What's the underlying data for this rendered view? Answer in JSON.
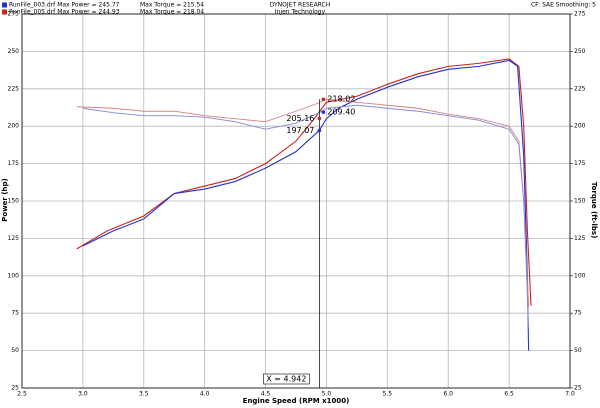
{
  "chart_data": {
    "type": "line",
    "title": "DYNOJET RESEARCH",
    "subtitle": "Injen Technology",
    "corner_note": "CF: SAE Smoothing: 5",
    "x_label": "Engine Speed (RPM x1000)",
    "y_label": "Power (hp)",
    "y2_label": "Torque (ft-lbs)",
    "legend": [
      {
        "text": "RunFile_003.drf Max Power = 245.77",
        "torque_text": "Max Torque = 215.54",
        "color": "#2233cc"
      },
      {
        "text": "RunFile_005.drf Max Power = 244.93",
        "torque_text": "Max Torque = 218.04",
        "color": "#cc2222"
      }
    ],
    "xlim": [
      2.5,
      7.0
    ],
    "xticks": [
      {
        "value": 2.5,
        "label": "2.5"
      },
      {
        "value": 3,
        "label": "3.0"
      },
      {
        "value": 3.5,
        "label": "3.5"
      },
      {
        "value": 4,
        "label": "4.0"
      },
      {
        "value": 4.5,
        "label": "4.5"
      },
      {
        "value": 5,
        "label": "5.0"
      },
      {
        "value": 5.5,
        "label": "5.5"
      },
      {
        "value": 6,
        "label": "6.0"
      },
      {
        "value": 6.5,
        "label": "6.5"
      },
      {
        "value": 7,
        "label": "7.0"
      }
    ],
    "ylim": [
      25,
      275
    ],
    "yticks": [
      25,
      50,
      75,
      100,
      125,
      150,
      175,
      200,
      225,
      250,
      275
    ],
    "y2lim": [
      25,
      275
    ],
    "y2ticks": [
      25,
      50,
      75,
      100,
      125,
      150,
      175,
      200,
      225,
      250,
      275
    ],
    "grid": true,
    "series": [
      {
        "color": "#cc2222",
        "width": 1.1,
        "x": [
          2.95,
          3.2,
          3.5,
          3.75,
          4.0,
          4.25,
          4.5,
          4.75,
          4.9,
          5.0,
          5.25,
          5.5,
          5.75,
          6.0,
          6.25,
          6.5,
          6.58,
          6.62,
          6.65,
          6.68
        ],
        "values": [
          118,
          130,
          140,
          155,
          160,
          165,
          175,
          190,
          205,
          216,
          220,
          228,
          235,
          240,
          242,
          245,
          240,
          200,
          130,
          80
        ]
      },
      {
        "color": "#2233cc",
        "width": 1.1,
        "x": [
          3.0,
          3.25,
          3.5,
          3.75,
          4.0,
          4.25,
          4.5,
          4.75,
          4.94,
          5.0,
          5.1,
          5.25,
          5.5,
          5.75,
          6.0,
          6.25,
          6.5,
          6.57,
          6.62,
          6.65,
          6.66
        ],
        "values": [
          120,
          130,
          138,
          155,
          158,
          163,
          172,
          183,
          197,
          205,
          212,
          218,
          226,
          233,
          238,
          240,
          244,
          240,
          180,
          100,
          50
        ]
      },
      {
        "color": "#d88080",
        "width": 0.9,
        "axis": "y2",
        "x": [
          2.95,
          3.25,
          3.5,
          3.75,
          4.0,
          4.25,
          4.5,
          4.75,
          4.95,
          5.0,
          5.25,
          5.5,
          5.75,
          6.0,
          6.25,
          6.5,
          6.58,
          6.62,
          6.66
        ],
        "values": [
          213,
          212,
          210,
          210,
          207,
          205,
          203,
          210,
          216,
          218,
          216,
          214,
          212,
          208,
          205,
          200,
          190,
          150,
          80
        ]
      },
      {
        "color": "#8088d8",
        "width": 0.9,
        "axis": "y2",
        "x": [
          3.0,
          3.25,
          3.5,
          3.75,
          4.0,
          4.25,
          4.5,
          4.75,
          4.94,
          5.0,
          5.25,
          5.5,
          5.75,
          6.0,
          6.25,
          6.5,
          6.58,
          6.62,
          6.66
        ],
        "values": [
          212,
          209,
          207,
          207,
          206,
          203,
          198,
          202,
          209,
          212,
          214,
          212,
          210,
          207,
          204,
          198,
          188,
          150,
          65
        ]
      }
    ],
    "cursor": {
      "x": 4.942,
      "x_label": "X = 4.942",
      "values": [
        218.02,
        209.4,
        205.16,
        197.07
      ],
      "value_labels": [
        "218.02",
        "209.40",
        "205.16",
        "197.07"
      ],
      "colors": [
        "#cc2222",
        "#2233cc",
        "#cc2222",
        "#2233cc"
      ]
    }
  }
}
